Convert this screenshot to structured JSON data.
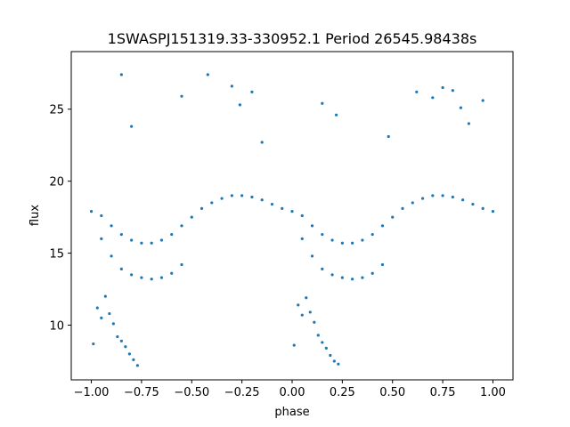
{
  "chart_data": {
    "type": "scatter",
    "title": "1SWASPJ151319.33-330952.1 Period 26545.98438s",
    "xlabel": "phase",
    "ylabel": "flux",
    "xlim": [
      -1.1,
      1.1
    ],
    "ylim": [
      6.2,
      29.0
    ],
    "xticks": [
      -1.0,
      -0.75,
      -0.5,
      -0.25,
      0.0,
      0.25,
      0.5,
      0.75,
      1.0
    ],
    "xtick_labels": [
      "−1.00",
      "−0.75",
      "−0.50",
      "−0.25",
      "0.00",
      "0.25",
      "0.50",
      "0.75",
      "1.00"
    ],
    "yticks": [
      10,
      15,
      20,
      25
    ],
    "ytick_labels": [
      "10",
      "15",
      "20",
      "25"
    ],
    "grid": false,
    "legend": false,
    "marker_color": "#1f77b4",
    "series": [
      {
        "x": [
          -1.0,
          -0.95,
          -0.9,
          -0.85,
          -0.8,
          -0.75,
          -0.7,
          -0.65,
          -0.6,
          -0.55,
          -0.5,
          -0.45,
          -0.4,
          -0.35,
          -0.3,
          -0.25,
          -0.2,
          -0.15,
          -0.1,
          -0.05,
          0.0,
          0.05,
          0.1,
          0.15,
          0.2,
          0.25,
          0.3,
          0.35,
          0.4,
          0.45,
          0.5,
          0.55,
          0.6,
          0.65,
          0.7,
          0.75,
          0.8,
          0.85,
          0.9,
          0.95,
          1.0
        ],
        "y": [
          17.9,
          17.6,
          16.9,
          16.3,
          15.9,
          15.7,
          15.7,
          15.9,
          16.3,
          16.9,
          17.5,
          18.1,
          18.5,
          18.8,
          19.0,
          19.0,
          18.9,
          18.7,
          18.4,
          18.1,
          17.9,
          17.6,
          16.9,
          16.3,
          15.9,
          15.7,
          15.7,
          15.9,
          16.3,
          16.9,
          17.5,
          18.1,
          18.5,
          18.8,
          19.0,
          19.0,
          18.9,
          18.7,
          18.4,
          18.1,
          17.9
        ]
      },
      {
        "x": [
          -0.95,
          -0.9,
          -0.85,
          -0.8,
          -0.75,
          -0.7,
          -0.65,
          -0.6,
          -0.55,
          0.05,
          0.1,
          0.15,
          0.2,
          0.25,
          0.3,
          0.35,
          0.4,
          0.45
        ],
        "y": [
          16.0,
          14.8,
          13.9,
          13.5,
          13.3,
          13.2,
          13.3,
          13.6,
          14.2,
          16.0,
          14.8,
          13.9,
          13.5,
          13.3,
          13.2,
          13.3,
          13.6,
          14.2
        ]
      },
      {
        "x": [
          -0.99,
          -0.97,
          -0.95,
          -0.93,
          -0.91,
          -0.89,
          -0.87,
          -0.85,
          -0.83,
          -0.81,
          -0.79,
          -0.77,
          0.01,
          0.03,
          0.05,
          0.07,
          0.09,
          0.11,
          0.13,
          0.15,
          0.17,
          0.19,
          0.21,
          0.23
        ],
        "y": [
          8.7,
          11.2,
          10.5,
          12.0,
          10.8,
          10.1,
          9.2,
          8.9,
          8.5,
          8.0,
          7.6,
          7.2,
          8.6,
          11.4,
          10.7,
          11.9,
          10.9,
          10.2,
          9.3,
          8.8,
          8.4,
          7.9,
          7.5,
          7.3
        ]
      },
      {
        "x": [
          -0.85,
          -0.8,
          -0.55,
          -0.42,
          -0.3,
          -0.26,
          -0.2,
          -0.15,
          0.15,
          0.22,
          0.48,
          0.62,
          0.7,
          0.75,
          0.8,
          0.84,
          0.88,
          0.95
        ],
        "y": [
          27.4,
          23.8,
          25.9,
          27.4,
          26.6,
          25.3,
          26.2,
          22.7,
          25.4,
          24.6,
          23.1,
          26.2,
          25.8,
          26.5,
          26.3,
          25.1,
          24.0,
          25.6
        ]
      }
    ]
  }
}
